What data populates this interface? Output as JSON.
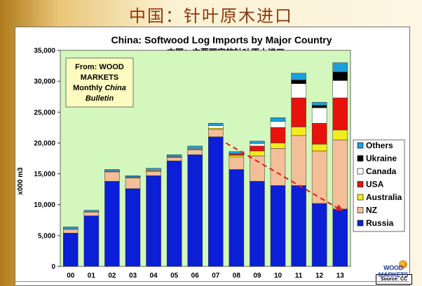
{
  "slide": {
    "title": "中国：针叶原木进口",
    "source_note": "Source: CC",
    "logo_line1": "WOOD",
    "logo_line2": "MARKETS"
  },
  "colors": {
    "Russia": "#0b1fd6",
    "NZ": "#f4bf98",
    "Australia": "#f2ec1f",
    "USA": "#e8120c",
    "Canada": "#ffffff",
    "Ukraine": "#000000",
    "Others": "#1aa0dc",
    "plot_background": "#d3f7bd",
    "trend_arrow": "#e01a1a",
    "callout_background": "#fdfcc0"
  },
  "chart_data": {
    "type": "bar",
    "stacked": true,
    "title": "China: Softwood Log Imports by Major Country",
    "subtitle": "中国：主要国家的针叶原木进口",
    "xlabel": "",
    "ylabel": "x000 m3",
    "ylim": [
      0,
      35000
    ],
    "yticks": [
      0,
      5000,
      10000,
      15000,
      20000,
      25000,
      30000,
      35000
    ],
    "ytick_labels": [
      "0",
      "5,000",
      "10,000",
      "15,000",
      "20,000",
      "25,000",
      "30,000",
      "35,000"
    ],
    "grid": false,
    "legend_position": "right",
    "categories": [
      "00",
      "01",
      "02",
      "03",
      "04",
      "05",
      "06",
      "07",
      "08",
      "09",
      "10",
      "11",
      "12",
      "13"
    ],
    "series": [
      {
        "name": "Russia",
        "values": [
          5400,
          8200,
          13800,
          12600,
          14700,
          17100,
          18100,
          21000,
          15700,
          13800,
          13100,
          13100,
          10200,
          9300
        ]
      },
      {
        "name": "NZ",
        "values": [
          600,
          600,
          1500,
          1700,
          700,
          500,
          800,
          1200,
          2000,
          4100,
          6000,
          8100,
          8500,
          11200
        ]
      },
      {
        "name": "Australia",
        "values": [
          0,
          0,
          100,
          100,
          100,
          100,
          100,
          200,
          300,
          800,
          900,
          1400,
          1100,
          1600
        ]
      },
      {
        "name": "USA",
        "values": [
          0,
          0,
          0,
          0,
          0,
          0,
          0,
          0,
          200,
          800,
          2500,
          4700,
          3400,
          5200
        ]
      },
      {
        "name": "Canada",
        "values": [
          100,
          100,
          100,
          100,
          100,
          100,
          100,
          400,
          100,
          400,
          1000,
          2300,
          2500,
          2800
        ]
      },
      {
        "name": "Ukraine",
        "values": [
          0,
          0,
          0,
          0,
          0,
          0,
          0,
          0,
          0,
          0,
          0,
          600,
          400,
          1400
        ]
      },
      {
        "name": "Others",
        "values": [
          300,
          200,
          200,
          200,
          300,
          300,
          400,
          400,
          300,
          400,
          600,
          1100,
          500,
          1500
        ]
      }
    ],
    "legend_order": [
      "Others",
      "Ukraine",
      "Canada",
      "USA",
      "Australia",
      "NZ",
      "Russia"
    ],
    "annotations": [
      {
        "kind": "callout",
        "lines": [
          "From: WOOD",
          "MARKETS",
          "Monthly ",
          "China",
          "Bulletin"
        ]
      },
      {
        "kind": "trend_arrow",
        "from": {
          "x": "07",
          "y": 20000
        },
        "to": {
          "x": "13",
          "y": 9000
        }
      }
    ]
  }
}
